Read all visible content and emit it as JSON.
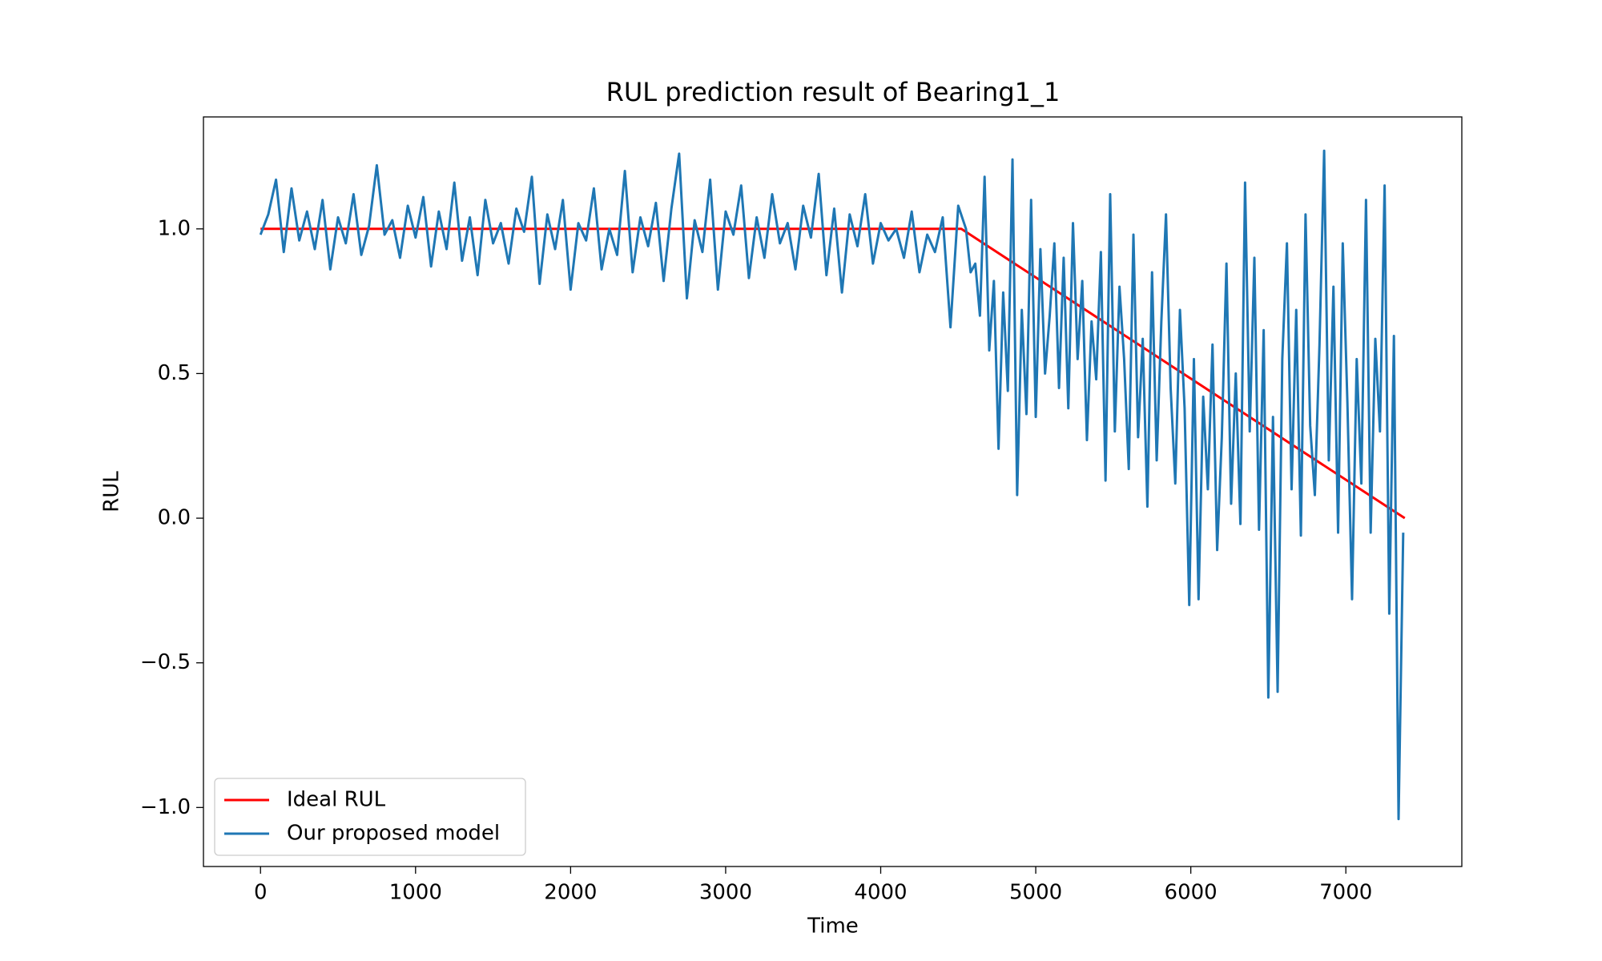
{
  "chart_data": {
    "type": "line",
    "title": "RUL prediction result of Bearing1_1",
    "x_label": "Time",
    "y_label": "RUL",
    "xlim": [
      -368,
      7748
    ],
    "ylim": [
      -1.204,
      1.387
    ],
    "xticks": [
      0,
      1000,
      2000,
      3000,
      4000,
      5000,
      6000,
      7000
    ],
    "yticks": [
      {
        "value": -1,
        "label": "−1.0"
      },
      {
        "value": -0.5,
        "label": "−0.5"
      },
      {
        "value": 0,
        "label": "0.0"
      },
      0.5,
      {
        "value": 1,
        "label": "1.0"
      }
    ],
    "legend": "lower left",
    "series": [
      {
        "name": "Ideal RUL",
        "color": "#ff0000",
        "x": [
          0,
          4520,
          7380
        ],
        "values": [
          1,
          1,
          0
        ]
      },
      {
        "name": "Our proposed model",
        "color": "#1f77b4",
        "x": [
          0,
          50,
          100,
          150,
          200,
          250,
          300,
          350,
          400,
          450,
          500,
          550,
          600,
          650,
          700,
          750,
          800,
          850,
          900,
          950,
          1000,
          1050,
          1100,
          1150,
          1200,
          1250,
          1300,
          1350,
          1400,
          1450,
          1500,
          1550,
          1600,
          1650,
          1700,
          1750,
          1800,
          1850,
          1900,
          1950,
          2000,
          2050,
          2100,
          2150,
          2200,
          2250,
          2300,
          2350,
          2400,
          2450,
          2500,
          2550,
          2600,
          2650,
          2700,
          2750,
          2800,
          2850,
          2900,
          2950,
          3000,
          3050,
          3100,
          3150,
          3200,
          3250,
          3300,
          3350,
          3400,
          3450,
          3500,
          3550,
          3600,
          3650,
          3700,
          3750,
          3800,
          3850,
          3900,
          3950,
          4000,
          4050,
          4100,
          4150,
          4200,
          4250,
          4300,
          4350,
          4400,
          4450,
          4500,
          4550,
          4580,
          4610,
          4640,
          4670,
          4700,
          4730,
          4760,
          4790,
          4820,
          4850,
          4880,
          4910,
          4940,
          4970,
          5000,
          5030,
          5060,
          5090,
          5120,
          5150,
          5180,
          5210,
          5240,
          5270,
          5300,
          5330,
          5360,
          5390,
          5420,
          5450,
          5480,
          5510,
          5540,
          5570,
          5600,
          5630,
          5660,
          5690,
          5720,
          5750,
          5780,
          5810,
          5840,
          5870,
          5900,
          5930,
          5960,
          5990,
          6020,
          6050,
          6080,
          6110,
          6140,
          6170,
          6200,
          6230,
          6260,
          6290,
          6320,
          6350,
          6380,
          6410,
          6440,
          6470,
          6500,
          6530,
          6560,
          6590,
          6620,
          6650,
          6680,
          6710,
          6740,
          6770,
          6800,
          6830,
          6860,
          6890,
          6920,
          6950,
          6980,
          7010,
          7040,
          7070,
          7100,
          7130,
          7160,
          7190,
          7220,
          7250,
          7280,
          7310,
          7340,
          7370
        ],
        "values": [
          0.98,
          1.05,
          1.17,
          0.92,
          1.14,
          0.96,
          1.06,
          0.93,
          1.1,
          0.86,
          1.04,
          0.95,
          1.12,
          0.91,
          1.01,
          1.22,
          0.98,
          1.03,
          0.9,
          1.08,
          0.97,
          1.11,
          0.87,
          1.06,
          0.93,
          1.16,
          0.89,
          1.04,
          0.84,
          1.1,
          0.95,
          1.02,
          0.88,
          1.07,
          0.99,
          1.18,
          0.81,
          1.05,
          0.93,
          1.1,
          0.79,
          1.02,
          0.96,
          1.14,
          0.86,
          1.0,
          0.91,
          1.2,
          0.85,
          1.04,
          0.94,
          1.09,
          0.82,
          1.07,
          1.26,
          0.76,
          1.03,
          0.92,
          1.17,
          0.79,
          1.06,
          0.98,
          1.15,
          0.83,
          1.04,
          0.9,
          1.12,
          0.95,
          1.02,
          0.86,
          1.08,
          0.97,
          1.19,
          0.84,
          1.07,
          0.78,
          1.05,
          0.94,
          1.12,
          0.88,
          1.02,
          0.96,
          1.0,
          0.9,
          1.06,
          0.85,
          0.98,
          0.92,
          1.04,
          0.66,
          1.08,
          1.0,
          0.85,
          0.88,
          0.7,
          1.18,
          0.58,
          0.82,
          0.24,
          0.78,
          0.44,
          1.24,
          0.08,
          0.72,
          0.36,
          1.1,
          0.35,
          0.93,
          0.5,
          0.7,
          0.95,
          0.45,
          0.9,
          0.38,
          1.02,
          0.55,
          0.82,
          0.27,
          0.68,
          0.48,
          0.92,
          0.13,
          1.12,
          0.3,
          0.8,
          0.55,
          0.17,
          0.98,
          0.28,
          0.62,
          0.04,
          0.85,
          0.2,
          0.68,
          1.05,
          0.45,
          0.12,
          0.72,
          0.38,
          -0.3,
          0.55,
          -0.28,
          0.42,
          0.1,
          0.6,
          -0.11,
          0.28,
          0.88,
          0.05,
          0.5,
          -0.02,
          1.16,
          0.3,
          0.9,
          -0.04,
          0.65,
          -0.62,
          0.35,
          -0.6,
          0.55,
          0.95,
          0.1,
          0.72,
          -0.06,
          1.05,
          0.32,
          0.08,
          0.6,
          1.27,
          0.2,
          0.8,
          -0.05,
          0.95,
          0.4,
          -0.28,
          0.55,
          0.12,
          1.1,
          -0.05,
          0.62,
          0.3,
          1.15,
          -0.33,
          0.63,
          -1.04,
          -0.05
        ]
      }
    ]
  }
}
